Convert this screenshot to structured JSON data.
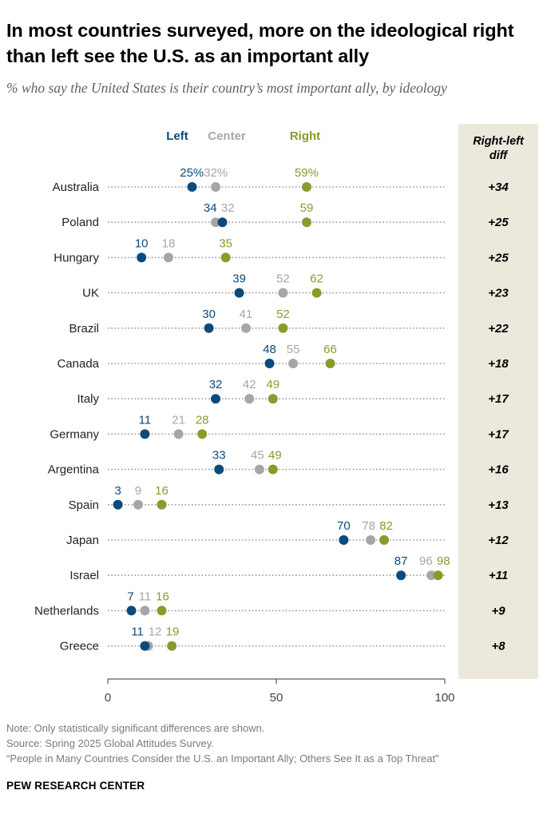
{
  "title": "In most countries surveyed, more on the ideological right than left see the U.S. as an important ally",
  "subtitle": "% who say the United States is their country’s most important ally, by ideology",
  "chart_data": {
    "type": "dot",
    "legend": [
      {
        "name": "Left",
        "color": "#0b4a7d"
      },
      {
        "name": "Center",
        "color": "#a6a6a6"
      },
      {
        "name": "Right",
        "color": "#8a9a2b"
      }
    ],
    "diff_header": "Right-left diff",
    "categories": [
      "Australia",
      "Poland",
      "Hungary",
      "UK",
      "Brazil",
      "Canada",
      "Italy",
      "Germany",
      "Argentina",
      "Spain",
      "Japan",
      "Israel",
      "Netherlands",
      "Greece"
    ],
    "series": [
      {
        "name": "Left",
        "values": [
          25,
          34,
          10,
          39,
          30,
          48,
          32,
          11,
          33,
          3,
          70,
          87,
          7,
          11
        ]
      },
      {
        "name": "Center",
        "values": [
          32,
          32,
          18,
          52,
          41,
          55,
          42,
          21,
          45,
          9,
          78,
          96,
          11,
          12
        ]
      },
      {
        "name": "Right",
        "values": [
          59,
          59,
          35,
          62,
          52,
          66,
          49,
          28,
          49,
          16,
          82,
          98,
          16,
          19
        ]
      }
    ],
    "value_labels": {
      "Left": [
        "25%",
        "34",
        "10",
        "39",
        "30",
        "48",
        "32",
        "11",
        "33",
        "3",
        "70",
        "87",
        "7",
        "11"
      ],
      "Center": [
        "32%",
        "32",
        "18",
        "52",
        "41",
        "55",
        "42",
        "21",
        "45",
        "9",
        "78",
        "96",
        "11",
        "12"
      ],
      "Right": [
        "59%",
        "59",
        "35",
        "62",
        "52",
        "66",
        "49",
        "28",
        "49",
        "16",
        "82",
        "98",
        "16",
        "19"
      ]
    },
    "diff": [
      "+34",
      "+25",
      "+25",
      "+23",
      "+22",
      "+18",
      "+17",
      "+17",
      "+16",
      "+13",
      "+12",
      "+11",
      "+9",
      "+8"
    ],
    "xlim": [
      0,
      100
    ],
    "xticks": [
      0,
      50,
      100
    ]
  },
  "footer": {
    "note": "Note: Only statistically significant differences are shown.",
    "source": "Source: Spring 2025 Global Attitudes Survey.",
    "report": "“People in Many Countries Consider the U.S. an Important Ally; Others See It as a Top Threat”",
    "brand": "PEW RESEARCH CENTER"
  },
  "colors": {
    "left": "#0b4a7d",
    "center": "#a6a6a6",
    "right": "#8a9a2b",
    "diff_panel": "#ebe8dc",
    "dotted_line": "#9a9a9a",
    "axis": "#333333"
  }
}
